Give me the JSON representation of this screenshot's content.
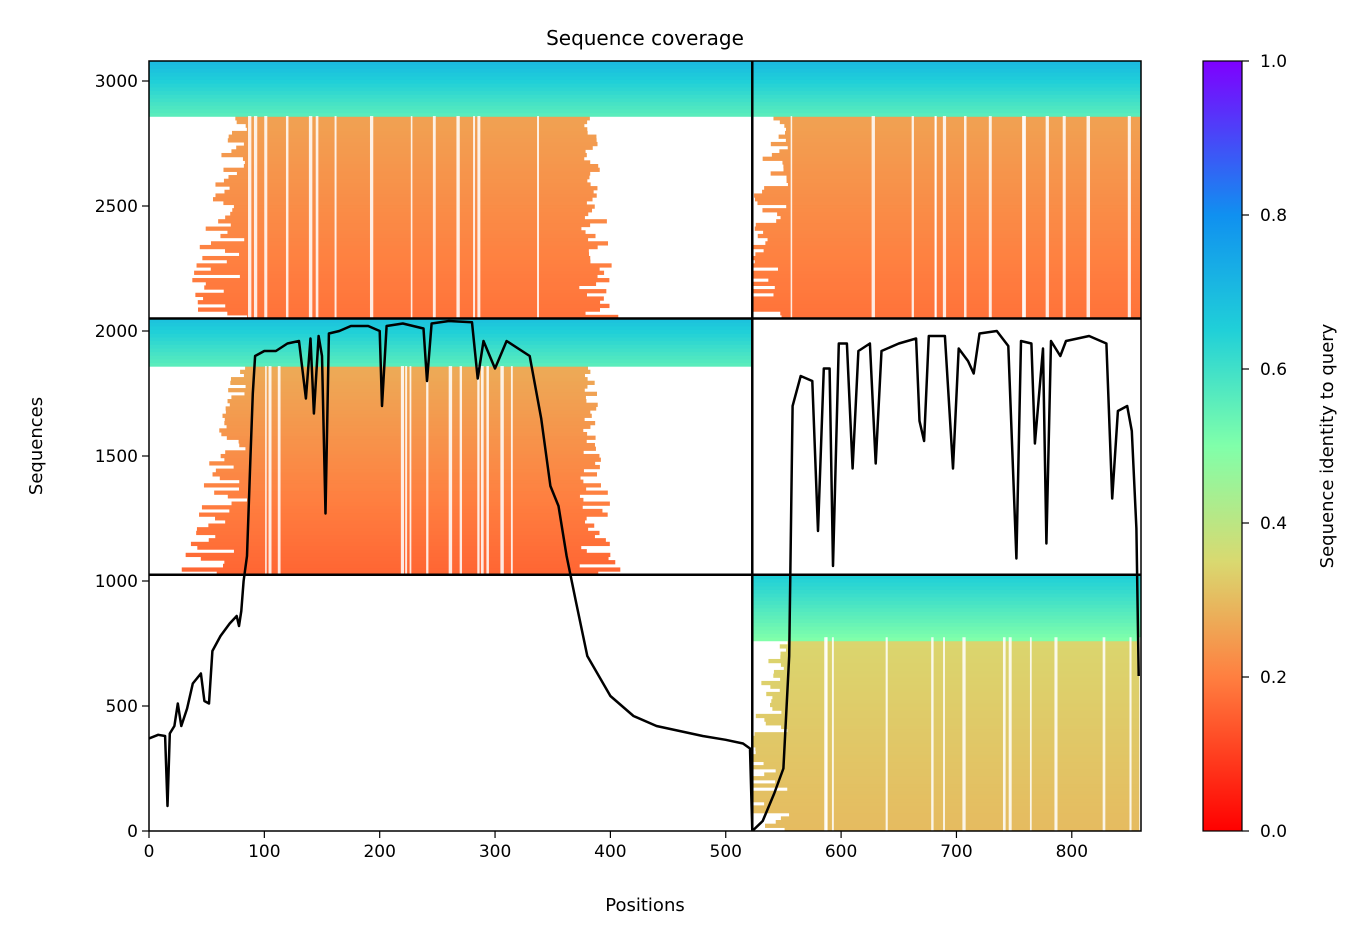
{
  "chart_data": {
    "type": "heatmap",
    "title": "Sequence coverage",
    "xlabel": "Positions",
    "ylabel": "Sequences",
    "xlim": [
      0,
      860
    ],
    "ylim": [
      0,
      3080
    ],
    "xticks": [
      0,
      100,
      200,
      300,
      400,
      500,
      600,
      700,
      800
    ],
    "yticks": [
      0,
      500,
      1000,
      1500,
      2000,
      2500,
      3000
    ],
    "grid": false,
    "colorbar": {
      "label": "Sequence identity to query",
      "range": [
        0,
        1
      ],
      "ticks": [
        "0.0",
        "0.2",
        "0.4",
        "0.6",
        "0.8",
        "1.0"
      ],
      "colormap": "rainbow"
    },
    "separators": {
      "vertical_at_position": 523,
      "horizontal_at_sequence": [
        1025,
        2050
      ]
    },
    "blocks": [
      {
        "x": [
          0,
          523
        ],
        "y": [
          2050,
          3080
        ],
        "high_identity_top_rows": 220,
        "high_identity_color_range": [
          0.55,
          0.7
        ],
        "low_identity_color_range": [
          0.18,
          0.28
        ],
        "main_coverage": [
          85,
          370
        ]
      },
      {
        "x": [
          523,
          860
        ],
        "y": [
          2050,
          3080
        ],
        "high_identity_top_rows": 220,
        "high_identity_color_range": [
          0.55,
          0.7
        ],
        "low_identity_color_range": [
          0.18,
          0.28
        ],
        "main_coverage": [
          555,
          860
        ]
      },
      {
        "x": [
          0,
          523
        ],
        "y": [
          1025,
          2050
        ],
        "high_identity_top_rows": 190,
        "high_identity_color_range": [
          0.55,
          0.68
        ],
        "low_identity_color_range": [
          0.16,
          0.3
        ],
        "main_coverage": [
          85,
          370
        ]
      },
      {
        "x": [
          523,
          860
        ],
        "y": [
          0,
          1025
        ],
        "high_identity_top_rows": 250,
        "high_identity_color_range": [
          0.5,
          0.65
        ],
        "low_identity_color_range": [
          0.3,
          0.36
        ],
        "main_coverage": [
          555,
          860
        ]
      }
    ],
    "series": [
      {
        "values": [
          [
            0,
            370
          ],
          [
            8,
            385
          ],
          [
            14,
            380
          ],
          [
            16,
            100
          ],
          [
            18,
            390
          ],
          [
            22,
            420
          ],
          [
            25,
            510
          ],
          [
            28,
            420
          ],
          [
            33,
            490
          ],
          [
            38,
            590
          ],
          [
            45,
            630
          ],
          [
            48,
            520
          ],
          [
            52,
            510
          ],
          [
            55,
            720
          ],
          [
            62,
            780
          ],
          [
            70,
            830
          ],
          [
            76,
            860
          ],
          [
            78,
            820
          ],
          [
            80,
            880
          ],
          [
            82,
            1000
          ],
          [
            85,
            1100
          ],
          [
            88,
            1500
          ],
          [
            90,
            1750
          ],
          [
            92,
            1900
          ],
          [
            100,
            1920
          ],
          [
            110,
            1920
          ],
          [
            120,
            1950
          ],
          [
            130,
            1960
          ],
          [
            136,
            1730
          ],
          [
            140,
            1970
          ],
          [
            143,
            1670
          ],
          [
            147,
            1980
          ],
          [
            150,
            1900
          ],
          [
            153,
            1270
          ],
          [
            156,
            1990
          ],
          [
            165,
            2000
          ],
          [
            175,
            2020
          ],
          [
            190,
            2020
          ],
          [
            200,
            2000
          ],
          [
            202,
            1700
          ],
          [
            206,
            2020
          ],
          [
            220,
            2030
          ],
          [
            238,
            2010
          ],
          [
            241,
            1800
          ],
          [
            245,
            2030
          ],
          [
            260,
            2040
          ],
          [
            280,
            2035
          ],
          [
            285,
            1810
          ],
          [
            290,
            1960
          ],
          [
            300,
            1850
          ],
          [
            310,
            1960
          ],
          [
            330,
            1900
          ],
          [
            340,
            1650
          ],
          [
            348,
            1380
          ],
          [
            355,
            1300
          ],
          [
            362,
            1100
          ],
          [
            370,
            920
          ],
          [
            380,
            700
          ],
          [
            400,
            540
          ],
          [
            420,
            460
          ],
          [
            440,
            420
          ],
          [
            460,
            400
          ],
          [
            480,
            380
          ],
          [
            500,
            365
          ],
          [
            515,
            350
          ],
          [
            521,
            330
          ],
          [
            523,
            0
          ],
          [
            532,
            40
          ],
          [
            542,
            150
          ],
          [
            550,
            250
          ],
          [
            555,
            700
          ],
          [
            558,
            1700
          ],
          [
            565,
            1820
          ],
          [
            575,
            1800
          ],
          [
            580,
            1200
          ],
          [
            585,
            1850
          ],
          [
            590,
            1850
          ],
          [
            593,
            1060
          ],
          [
            598,
            1950
          ],
          [
            605,
            1950
          ],
          [
            610,
            1450
          ],
          [
            615,
            1920
          ],
          [
            625,
            1950
          ],
          [
            630,
            1470
          ],
          [
            635,
            1920
          ],
          [
            650,
            1950
          ],
          [
            665,
            1970
          ],
          [
            668,
            1640
          ],
          [
            672,
            1560
          ],
          [
            676,
            1980
          ],
          [
            690,
            1980
          ],
          [
            697,
            1450
          ],
          [
            702,
            1930
          ],
          [
            710,
            1880
          ],
          [
            715,
            1830
          ],
          [
            720,
            1990
          ],
          [
            735,
            2000
          ],
          [
            745,
            1940
          ],
          [
            752,
            1090
          ],
          [
            756,
            1960
          ],
          [
            765,
            1950
          ],
          [
            768,
            1550
          ],
          [
            775,
            1930
          ],
          [
            778,
            1150
          ],
          [
            782,
            1960
          ],
          [
            790,
            1900
          ],
          [
            795,
            1960
          ],
          [
            815,
            1980
          ],
          [
            830,
            1950
          ],
          [
            835,
            1330
          ],
          [
            840,
            1680
          ],
          [
            848,
            1700
          ],
          [
            852,
            1600
          ],
          [
            856,
            1210
          ],
          [
            858,
            620
          ]
        ]
      }
    ]
  }
}
